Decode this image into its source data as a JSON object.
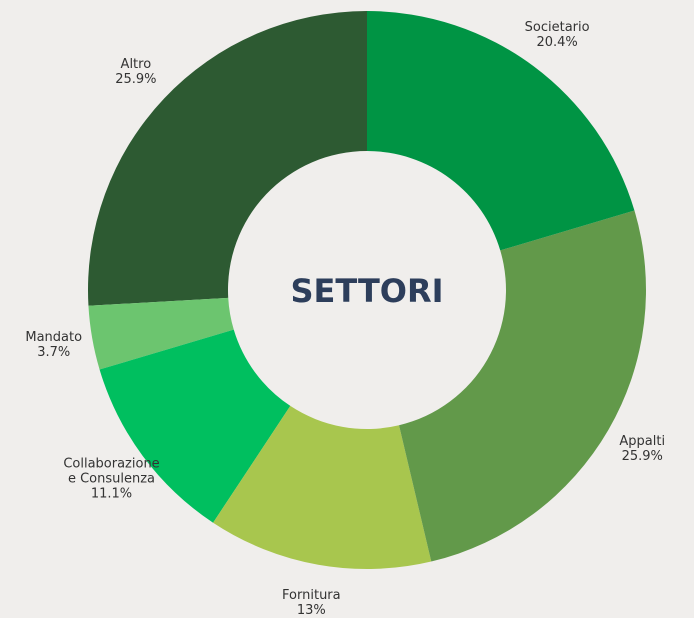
{
  "chart_data": {
    "type": "donut",
    "title": "SETTORI",
    "categories": [
      "Societario",
      "Appalti",
      "Fornitura",
      "Collaborazione e Consulenza",
      "Mandato",
      "Altro"
    ],
    "values": [
      20.4,
      25.9,
      13,
      11.1,
      3.7,
      25.9
    ],
    "value_labels": [
      "20.4%",
      "25.9%",
      "13%",
      "11.1%",
      "3.7%",
      "25.9%"
    ],
    "colors": [
      "#009444",
      "#62994a",
      "#a8c64e",
      "#00bf5f",
      "#6cc56f",
      "#2d5a32"
    ]
  }
}
